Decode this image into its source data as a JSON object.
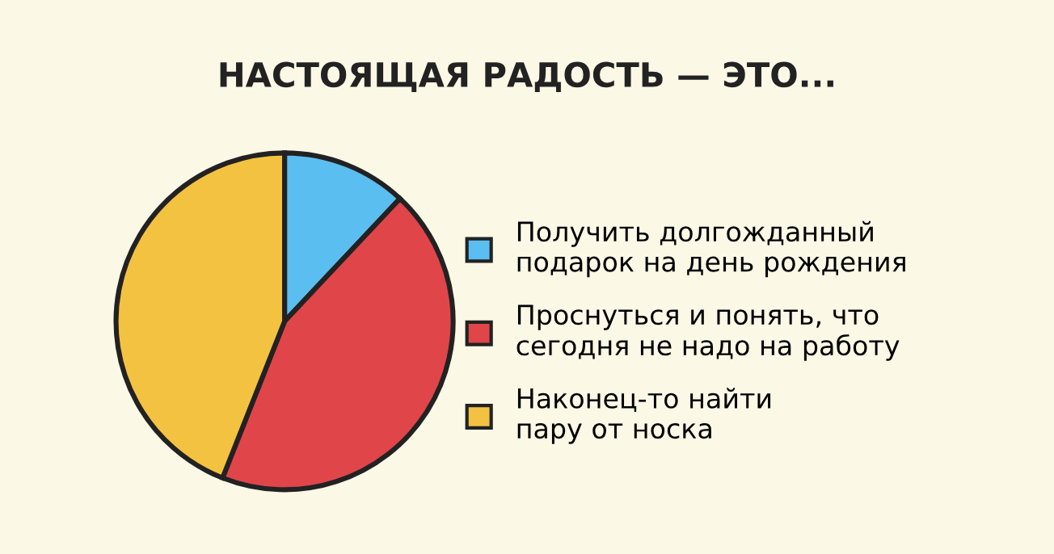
{
  "chart_data": {
    "type": "pie",
    "title": "НАСТОЯЩАЯ РАДОСТЬ — ЭТО...",
    "categories": [
      "Получить долгожданный\nподарок на день рождения",
      "Проснуться и понять, что\nсегодня не надо на работу",
      "Наконец-то найти\nпару от носка"
    ],
    "values": [
      12,
      44,
      44
    ],
    "colors": [
      "#5bbef0",
      "#e0454a",
      "#f4c241"
    ],
    "legend": "right"
  }
}
